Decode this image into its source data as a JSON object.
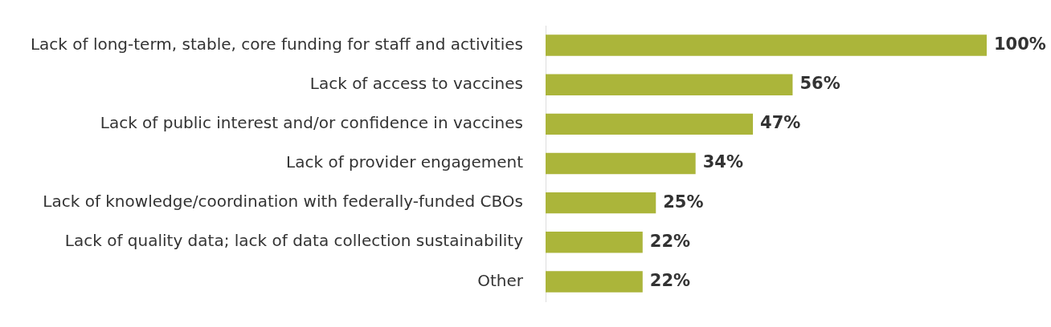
{
  "chart_data": {
    "type": "bar",
    "orientation": "horizontal",
    "categories": [
      "Lack of long-term, stable, core funding for staff and activities",
      "Lack of access to vaccines",
      "Lack of public interest and/or confidence in vaccines",
      "Lack of provider engagement",
      "Lack of knowledge/coordination with federally-funded CBOs",
      "Lack of quality data; lack of data collection sustainability",
      "Other"
    ],
    "values": [
      100,
      56,
      47,
      34,
      25,
      22,
      22
    ],
    "value_labels": [
      "100%",
      "56%",
      "47%",
      "34%",
      "25%",
      "22%",
      "22%"
    ],
    "color": "#abb53a",
    "legend": false,
    "tick_labels": "y"
  }
}
